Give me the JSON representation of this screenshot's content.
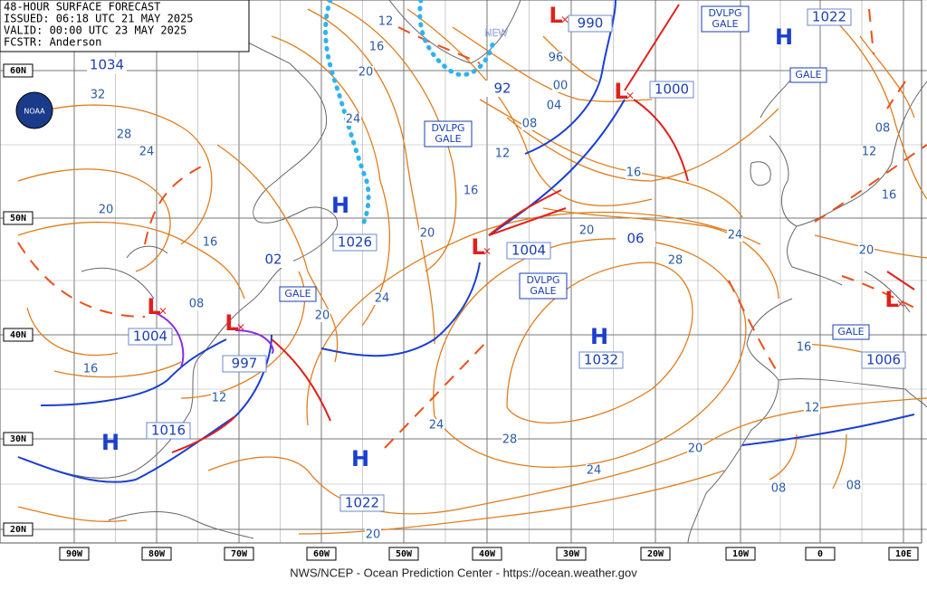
{
  "header": {
    "lines": [
      "48-HOUR SURFACE FORECAST",
      "ISSUED: 06:18 UTC 21 MAY 2025",
      "VALID:  00:00 UTC 23 MAY 2025",
      "FCSTR:  Anderson"
    ]
  },
  "logo": "NOAA",
  "footer": "NWS/NCEP - Ocean Prediction Center - https://ocean.weather.gov",
  "latitudes": [
    "60N",
    "50N",
    "40N",
    "30N",
    "20N"
  ],
  "longitudes": [
    "90W",
    "80W",
    "70W",
    "60W",
    "50W",
    "40W",
    "30W",
    "20W",
    "10W",
    "0",
    "10E"
  ],
  "highs": [
    {
      "symbol": "H",
      "pressure": "1026"
    },
    {
      "symbol": "H",
      "pressure": "1022"
    },
    {
      "symbol": "H",
      "pressure": "1032"
    },
    {
      "symbol": "H",
      "pressure": "1022"
    },
    {
      "symbol": "H",
      "pressure": "1016"
    }
  ],
  "lows": [
    {
      "symbol": "L",
      "pressure": "1004"
    },
    {
      "symbol": "L",
      "pressure": "997"
    },
    {
      "symbol": "L",
      "pressure": "990"
    },
    {
      "symbol": "L",
      "pressure": "1000"
    },
    {
      "symbol": "L",
      "pressure": "1004"
    },
    {
      "symbol": "L",
      "pressure": "1006"
    }
  ],
  "pressure_labels": [
    "1034",
    "02",
    "92",
    "06"
  ],
  "isobar_labels": [
    "12",
    "16",
    "20",
    "24",
    "32",
    "28",
    "24",
    "20",
    "16",
    "08",
    "20",
    "24",
    "20",
    "16",
    "12",
    "08",
    "04",
    "00",
    "96",
    "16",
    "20",
    "24",
    "28",
    "16",
    "12",
    "24",
    "28",
    "24",
    "20",
    "12",
    "08",
    "08",
    "16",
    "20",
    "16",
    "12",
    "08",
    "20"
  ],
  "warnings": [
    "DVLPG GALE",
    "DVLPG GALE",
    "DVLPG GALE",
    "GALE",
    "GALE",
    "GALE"
  ],
  "annotations": [
    "NEW"
  ]
}
